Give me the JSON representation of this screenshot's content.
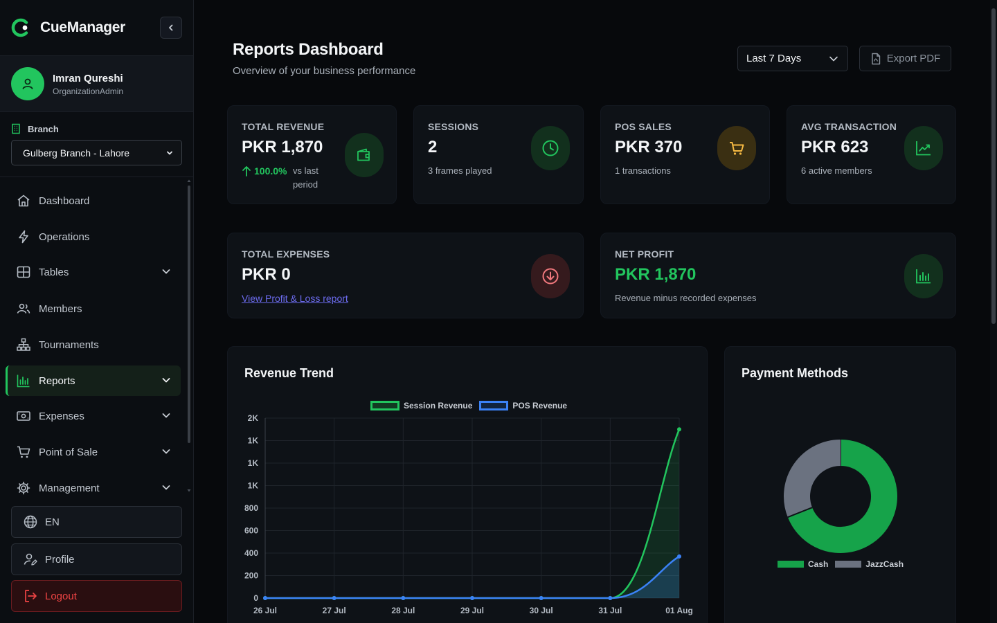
{
  "app": {
    "name": "CueManager",
    "accent": "#22c55e"
  },
  "user": {
    "name": "Imran Qureshi",
    "role": "OrganizationAdmin"
  },
  "branch": {
    "label": "Branch",
    "selected": "Gulberg Branch - Lahore"
  },
  "nav": [
    {
      "label": "Dashboard",
      "icon": "home-icon",
      "has_chevron": false,
      "active": false
    },
    {
      "label": "Operations",
      "icon": "bolt-icon",
      "has_chevron": false,
      "active": false
    },
    {
      "label": "Tables",
      "icon": "grid-icon",
      "has_chevron": true,
      "active": false
    },
    {
      "label": "Members",
      "icon": "users-icon",
      "has_chevron": false,
      "active": false
    },
    {
      "label": "Tournaments",
      "icon": "hierarchy-icon",
      "has_chevron": false,
      "active": false
    },
    {
      "label": "Reports",
      "icon": "bar-chart-icon",
      "has_chevron": true,
      "active": true
    },
    {
      "label": "Expenses",
      "icon": "cash-icon",
      "has_chevron": true,
      "active": false
    },
    {
      "label": "Point of Sale",
      "icon": "cart-icon",
      "has_chevron": true,
      "active": false
    },
    {
      "label": "Management",
      "icon": "gear-icon",
      "has_chevron": true,
      "active": false
    }
  ],
  "bottom": {
    "language": "EN",
    "profile": "Profile",
    "logout": "Logout"
  },
  "header": {
    "title": "Reports Dashboard",
    "subtitle": "Overview of your business performance",
    "range": "Last 7 Days",
    "export": "Export PDF"
  },
  "stats": {
    "revenue": {
      "label": "TOTAL REVENUE",
      "value": "PKR 1,870",
      "trend_pct": "100.0%",
      "trend_note": "vs last period"
    },
    "sessions": {
      "label": "SESSIONS",
      "value": "2",
      "sub": "3 frames played"
    },
    "pos": {
      "label": "POS SALES",
      "value": "PKR 370",
      "sub": "1 transactions"
    },
    "avg": {
      "label": "AVG TRANSACTION",
      "value": "PKR 623",
      "sub": "6 active members"
    },
    "expenses": {
      "label": "TOTAL EXPENSES",
      "value": "PKR 0",
      "link": "View Profit & Loss report"
    },
    "profit": {
      "label": "NET PROFIT",
      "value": "PKR 1,870",
      "sub": "Revenue minus recorded expenses"
    }
  },
  "revenue_chart_title": "Revenue Trend",
  "payment_chart_title": "Payment Methods",
  "chart_data": [
    {
      "type": "area",
      "title": "Revenue Trend",
      "categories": [
        "26 Jul",
        "27 Jul",
        "28 Jul",
        "29 Jul",
        "30 Jul",
        "31 Jul",
        "01 Aug"
      ],
      "y_tick_labels": [
        "0",
        "200",
        "400",
        "600",
        "800",
        "1K",
        "1K",
        "1K",
        "2K"
      ],
      "ylim": [
        0,
        1600
      ],
      "grid": true,
      "legend_position": "top",
      "series": [
        {
          "name": "Session Revenue",
          "values": [
            0,
            0,
            0,
            0,
            0,
            0,
            1500
          ],
          "color": "#22c55e"
        },
        {
          "name": "POS Revenue",
          "values": [
            0,
            0,
            0,
            0,
            0,
            0,
            370
          ],
          "color": "#3b82f6"
        }
      ]
    },
    {
      "type": "pie",
      "title": "Payment Methods",
      "legend_position": "bottom",
      "categories": [
        "Cash",
        "JazzCash"
      ],
      "values": [
        69,
        31
      ],
      "colors": [
        "#16a34a",
        "#6b7280"
      ]
    }
  ]
}
